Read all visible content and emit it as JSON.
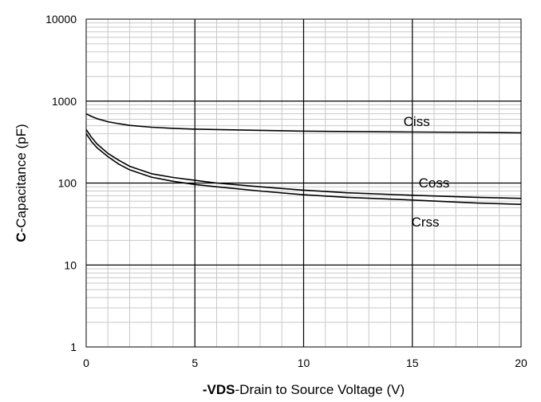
{
  "chart_data": {
    "type": "line",
    "y_scale": "log",
    "xlim": [
      0,
      20
    ],
    "ylim": [
      1,
      10000
    ],
    "x_ticks": [
      "0",
      "5",
      "10",
      "15",
      "20"
    ],
    "y_ticks": [
      "1",
      "10",
      "100",
      "1000",
      "10000"
    ],
    "xlabel_bold": "-VDS",
    "xlabel_rest": "-Drain to Source Voltage (V)",
    "ylabel_bold": "C",
    "ylabel_rest": "-Capacitance (pF)",
    "grid": true,
    "line_color": "#000000",
    "grid_color": "#c8c8c8",
    "series": [
      {
        "name": "Ciss",
        "x": [
          0,
          0.25,
          0.5,
          1,
          1.5,
          2,
          3,
          4,
          5,
          6,
          8,
          10,
          12,
          15,
          18,
          20
        ],
        "values": [
          700,
          650,
          610,
          560,
          530,
          505,
          480,
          465,
          455,
          450,
          440,
          430,
          425,
          420,
          415,
          410
        ]
      },
      {
        "name": "Coss",
        "x": [
          0,
          0.25,
          0.5,
          1,
          1.5,
          2,
          3,
          4,
          5,
          6,
          8,
          10,
          12,
          15,
          18,
          20
        ],
        "values": [
          450,
          360,
          300,
          230,
          190,
          160,
          130,
          117,
          108,
          100,
          90,
          82,
          76,
          71,
          67,
          65
        ]
      },
      {
        "name": "Crss",
        "x": [
          0,
          0.25,
          0.5,
          1,
          1.5,
          2,
          3,
          4,
          5,
          6,
          8,
          10,
          12,
          15,
          18,
          20
        ],
        "values": [
          400,
          320,
          270,
          210,
          170,
          145,
          118,
          105,
          96,
          90,
          80,
          72,
          67,
          62,
          57,
          55
        ]
      }
    ]
  }
}
